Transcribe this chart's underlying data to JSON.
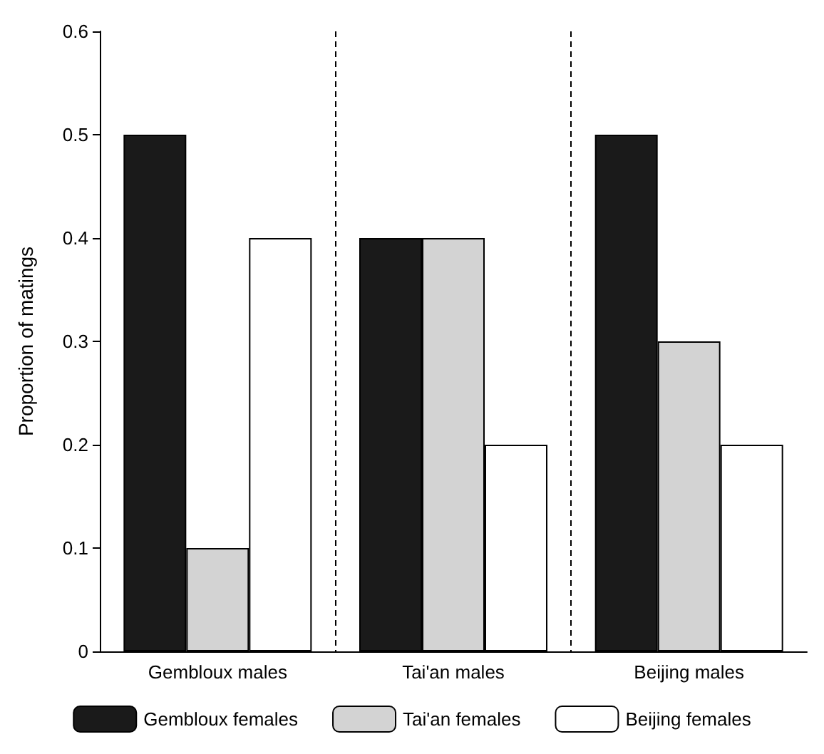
{
  "chart_data": {
    "type": "bar",
    "ylabel": "Proportion of matings",
    "categories": [
      "Gembloux males",
      "Tai'an males",
      "Beijing males"
    ],
    "series": [
      {
        "name": "Gembloux females",
        "color": "#1a1a1a",
        "values": [
          0.5,
          0.4,
          0.5
        ]
      },
      {
        "name": "Tai'an females",
        "color": "#d3d3d3",
        "values": [
          0.1,
          0.4,
          0.3
        ]
      },
      {
        "name": "Beijing females",
        "color": "#ffffff",
        "values": [
          0.4,
          0.2,
          0.2
        ]
      }
    ],
    "ylim": [
      0,
      0.6
    ],
    "yticks": [
      0,
      0.1,
      0.2,
      0.3,
      0.4,
      0.5,
      0.6
    ],
    "grid": "x",
    "legend": "bottom"
  }
}
